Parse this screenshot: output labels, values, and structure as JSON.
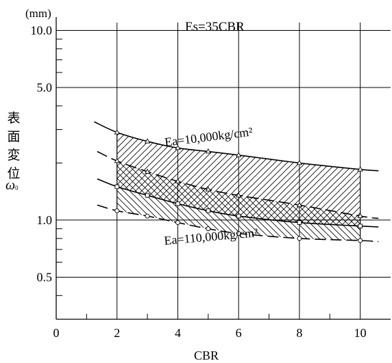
{
  "chart_data": {
    "type": "line",
    "unit_label": "(mm)",
    "annotation_top": "Es=35CBR",
    "ylabel_text": "表面変位",
    "ylabel_symbol": "ω",
    "ylabel_subscript": "0",
    "xlabel": "CBR",
    "x_ticks": [
      "0",
      "2",
      "4",
      "6",
      "8",
      "10"
    ],
    "y_ticks": [
      "0.5",
      "1.0",
      "5.0",
      "10.0"
    ],
    "xlim": [
      0,
      11
    ],
    "ylim": [
      0.3,
      11
    ],
    "y_scale": "log",
    "label_upper": "Ea=10,000kg/cm²",
    "label_lower": "Ea=110,000kg/cm²",
    "series": [
      {
        "label": "upper-solid",
        "style": "solid",
        "marker": "triangle",
        "x": [
          2,
          3,
          4,
          5,
          6,
          8,
          10
        ],
        "y": [
          2.9,
          2.6,
          2.4,
          2.3,
          2.2,
          2.0,
          1.85
        ],
        "curve_x": [
          1.25,
          2,
          3,
          4,
          5,
          6,
          8,
          10,
          10.6
        ],
        "curve_y": [
          3.3,
          2.9,
          2.6,
          2.4,
          2.3,
          2.2,
          2.0,
          1.85,
          1.82
        ]
      },
      {
        "label": "upper-dashed",
        "style": "dashed",
        "marker": "triangle",
        "x": [
          2,
          3,
          4,
          5,
          6,
          8,
          10
        ],
        "y": [
          2.05,
          1.8,
          1.6,
          1.45,
          1.35,
          1.2,
          1.05
        ],
        "curve_x": [
          1.35,
          2,
          3,
          4,
          5,
          6,
          8,
          10,
          10.6
        ],
        "curve_y": [
          2.3,
          2.05,
          1.8,
          1.6,
          1.45,
          1.35,
          1.2,
          1.05,
          1.02
        ]
      },
      {
        "label": "lower-solid",
        "style": "solid",
        "marker": "square",
        "x": [
          2,
          3,
          4,
          5,
          6,
          8,
          10
        ],
        "y": [
          1.5,
          1.35,
          1.22,
          1.12,
          1.05,
          0.97,
          0.93
        ],
        "curve_x": [
          1.35,
          2,
          3,
          4,
          5,
          6,
          8,
          10,
          10.6
        ],
        "curve_y": [
          1.65,
          1.5,
          1.35,
          1.22,
          1.12,
          1.05,
          0.97,
          0.93,
          0.92
        ]
      },
      {
        "label": "lower-dashed",
        "style": "dashed",
        "marker": "circle",
        "x": [
          2,
          3,
          4,
          5,
          6,
          8,
          10
        ],
        "y": [
          1.12,
          1.05,
          0.97,
          0.9,
          0.85,
          0.8,
          0.78
        ],
        "curve_x": [
          1.35,
          2,
          3,
          4,
          5,
          6,
          8,
          10,
          10.6
        ],
        "curve_y": [
          1.2,
          1.12,
          1.05,
          0.97,
          0.9,
          0.85,
          0.8,
          0.78,
          0.77
        ]
      }
    ],
    "hatch_regions": [
      {
        "pattern": "diagonal",
        "between": [
          "upper-solid",
          "upper-dashed"
        ],
        "x_range": [
          2,
          10
        ]
      },
      {
        "pattern": "crosshatch",
        "between": [
          "upper-dashed",
          "lower-solid"
        ],
        "x_range": [
          2,
          10
        ]
      },
      {
        "pattern": "back-diagonal",
        "between": [
          "lower-solid",
          "lower-dashed"
        ],
        "x_range": [
          2,
          10
        ]
      }
    ]
  }
}
